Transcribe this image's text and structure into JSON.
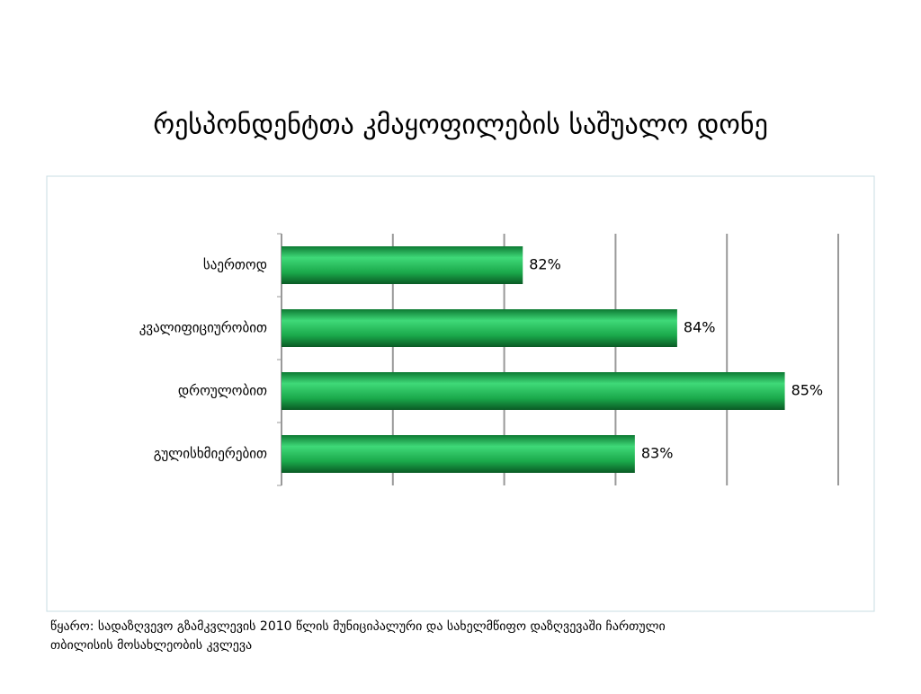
{
  "chart_data": {
    "type": "hbar",
    "title": "რესპონდენტთა კმაყოფილების საშუალო დონე",
    "categories": [
      "საერთოდ",
      "კვალიფიციურობით",
      "დროულობით",
      "გულისხმიერებით"
    ],
    "values": [
      81.75,
      83.83,
      85.28,
      83.26
    ],
    "value_labels": [
      "82%",
      "84%",
      "85%",
      "83%"
    ],
    "color": "#1aa84a",
    "xlim": [
      78.5,
      86
    ],
    "xticks": [
      78.5,
      80,
      81.5,
      83,
      84.5,
      86
    ],
    "grid": true
  },
  "source": [
    "წყარო: სადაზღვევო გზამკვლევის 2010 წლის მუნიციპალური და სახელმწიფო დაზღვევაში ჩართული",
    "თბილისის მოსახლეობის კვლევა"
  ]
}
